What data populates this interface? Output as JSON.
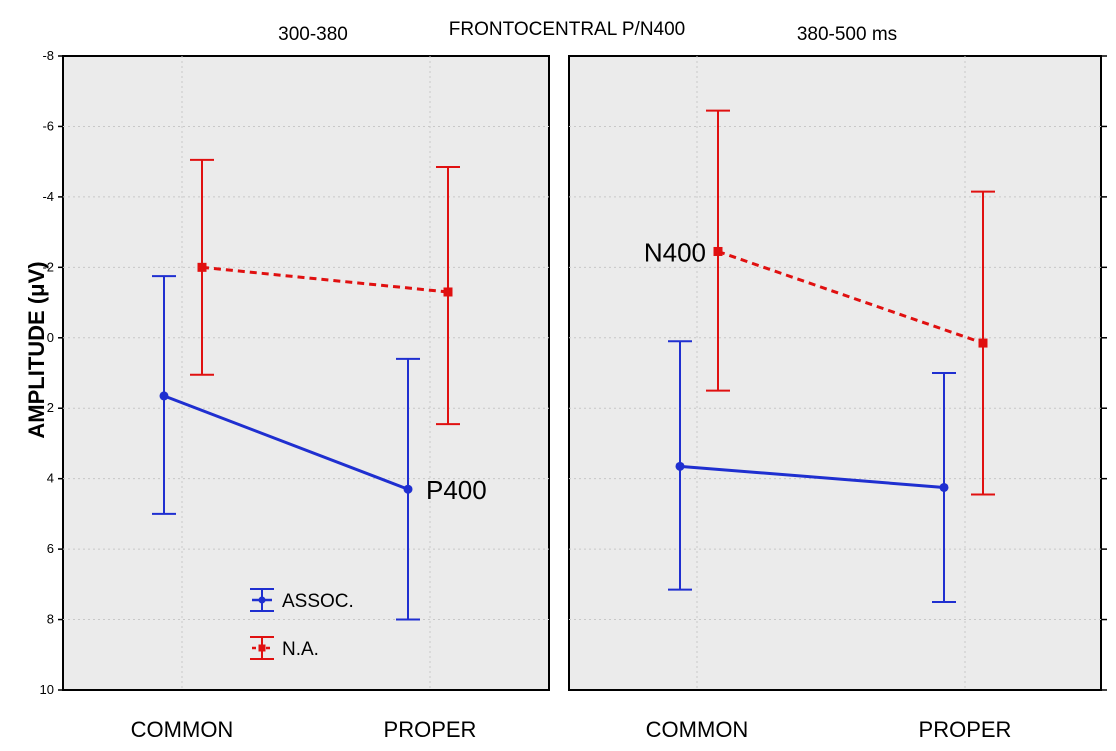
{
  "chart_data": {
    "type": "line",
    "title": "FRONTOCENTRAL P/N400",
    "ylabel": "AMPLITUDE (μV)",
    "y_axis_inverted": true,
    "ylim": [
      10,
      -8
    ],
    "yticks": [
      -8,
      -6,
      -4,
      -2,
      0,
      2,
      4,
      6,
      8,
      10
    ],
    "ytick_labels": [
      "-8",
      "-6",
      "-4",
      "-2",
      "0",
      "2",
      "4",
      "6",
      "8",
      "10"
    ],
    "grid": true,
    "legend": {
      "placement": "bottom-left of left panel",
      "entries": [
        "ASSOC.",
        "N.A."
      ]
    },
    "panels": [
      {
        "title": "300-380",
        "categories": [
          "COMMON",
          "PROPER"
        ],
        "series": [
          {
            "name": "ASSOC.",
            "color": "#1f2fd0",
            "line_style": "solid",
            "values": [
              1.65,
              4.3
            ],
            "err_low": [
              5.0,
              8.0
            ],
            "err_high": [
              -1.75,
              0.6
            ]
          },
          {
            "name": "N.A.",
            "color": "#e01010",
            "line_style": "dashed",
            "values": [
              -2.0,
              -1.3
            ],
            "err_low": [
              1.05,
              2.45
            ],
            "err_high": [
              -5.05,
              -4.85
            ]
          }
        ],
        "annotations": [
          {
            "text": "P400",
            "series": "ASSOC.",
            "category": "PROPER"
          }
        ]
      },
      {
        "title": "380-500 ms",
        "categories": [
          "COMMON",
          "PROPER"
        ],
        "series": [
          {
            "name": "ASSOC.",
            "color": "#1f2fd0",
            "line_style": "solid",
            "values": [
              3.65,
              4.25
            ],
            "err_low": [
              7.15,
              7.5
            ],
            "err_high": [
              0.1,
              1.0
            ]
          },
          {
            "name": "N.A.",
            "color": "#e01010",
            "line_style": "dashed",
            "values": [
              -2.45,
              0.15
            ],
            "err_low": [
              1.5,
              4.45
            ],
            "err_high": [
              -6.45,
              -4.15
            ]
          }
        ],
        "annotations": [
          {
            "text": "N400",
            "series": "N.A.",
            "category": "COMMON"
          }
        ]
      }
    ]
  }
}
